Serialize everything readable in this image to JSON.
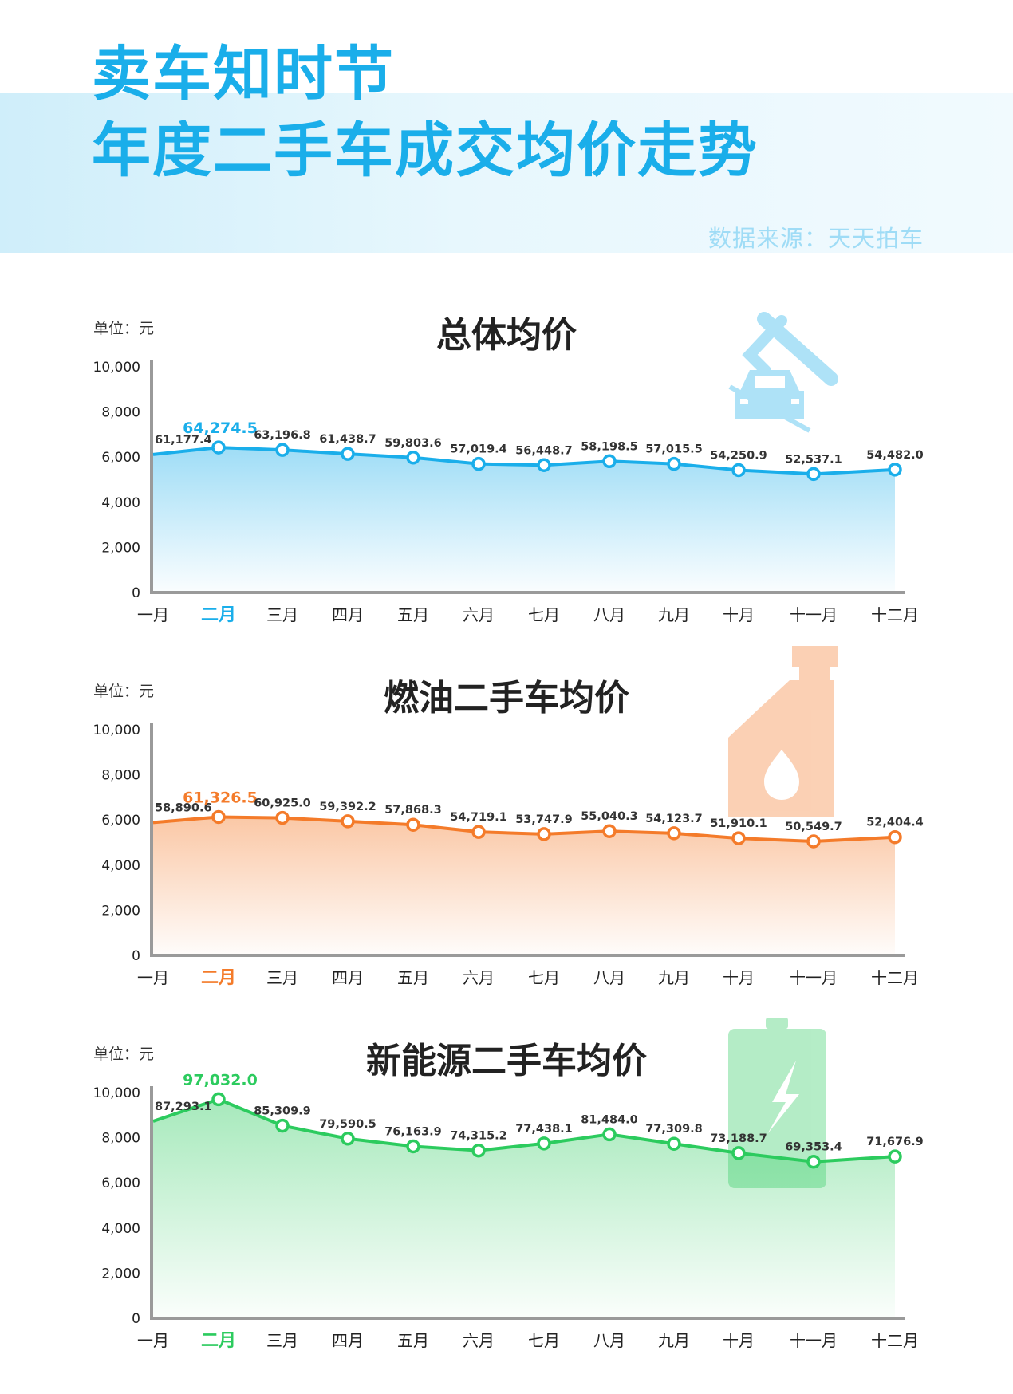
{
  "header": {
    "title_line1": "卖车知时节",
    "title_line2": "年度二手车成交均价走势",
    "source": "数据来源：天天拍车"
  },
  "chart_data": [
    {
      "type": "area",
      "title": "总体均价",
      "unit_label": "单位：元",
      "y_ticks": [
        "10,000",
        "8,000",
        "6,000",
        "4,000",
        "2,000",
        "0"
      ],
      "ylim": [
        0,
        10000
      ],
      "categories": [
        "一月",
        "二月",
        "三月",
        "四月",
        "五月",
        "六月",
        "七月",
        "八月",
        "九月",
        "十月",
        "十一月",
        "十二月"
      ],
      "highlight_index": 1,
      "point_positions_note": "",
      "values": [
        6117.74,
        6427.45,
        6319.68,
        6143.87,
        5980.36,
        5701.94,
        5644.87,
        5819.85,
        5701.55,
        5425.09,
        5253.71,
        5448.2
      ],
      "labels": [
        "61,177.4",
        "64,274.5",
        "63,196.8",
        "61,438.7",
        "59,803.6",
        "57,019.4",
        "56,448.7",
        "58,198.5",
        "57,015.5",
        "54,250.9",
        "52,537.1",
        "54,482.0"
      ],
      "color": "#1aaeea",
      "icon": "car-lift-icon"
    },
    {
      "type": "area",
      "title": "燃油二手车均价",
      "unit_label": "单位：元",
      "y_ticks": [
        "10,000",
        "8,000",
        "6,000",
        "4,000",
        "2,000",
        "0"
      ],
      "ylim": [
        0,
        10000
      ],
      "categories": [
        "一月",
        "二月",
        "三月",
        "四月",
        "五月",
        "六月",
        "七月",
        "八月",
        "九月",
        "十月",
        "十一月",
        "十二月"
      ],
      "highlight_index": 1,
      "values": [
        5889.06,
        6132.65,
        6092.5,
        5939.22,
        5786.83,
        5471.91,
        5374.79,
        5504.03,
        5412.37,
        5191.01,
        5054.97,
        5240.44
      ],
      "labels": [
        "58,890.6",
        "61,326.5",
        "60,925.0",
        "59,392.2",
        "57,868.3",
        "54,719.1",
        "53,747.9",
        "55,040.3",
        "54,123.7",
        "51,910.1",
        "50,549.7",
        "52,404.4"
      ],
      "color": "#f47b2a",
      "icon": "oil-can-icon"
    },
    {
      "type": "area",
      "title": "新能源二手车均价",
      "unit_label": "单位：元",
      "y_ticks": [
        "10,000",
        "8,000",
        "6,000",
        "4,000",
        "2,000",
        "0"
      ],
      "ylim": [
        0,
        10000
      ],
      "categories": [
        "一月",
        "二月",
        "三月",
        "四月",
        "五月",
        "六月",
        "七月",
        "八月",
        "九月",
        "十月",
        "十一月",
        "十二月"
      ],
      "highlight_index": 1,
      "values": [
        8729.31,
        9703.2,
        8530.99,
        7959.05,
        7616.39,
        7431.52,
        7743.81,
        8148.4,
        7730.98,
        7318.87,
        6935.34,
        7167.69
      ],
      "labels": [
        "87,293.1",
        "97,032.0",
        "85,309.9",
        "79,590.5",
        "76,163.9",
        "74,315.2",
        "77,438.1",
        "81,484.0",
        "77,309.8",
        "73,188.7",
        "69,353.4",
        "71,676.9"
      ],
      "color": "#2ccb5e",
      "icon": "battery-icon"
    }
  ]
}
